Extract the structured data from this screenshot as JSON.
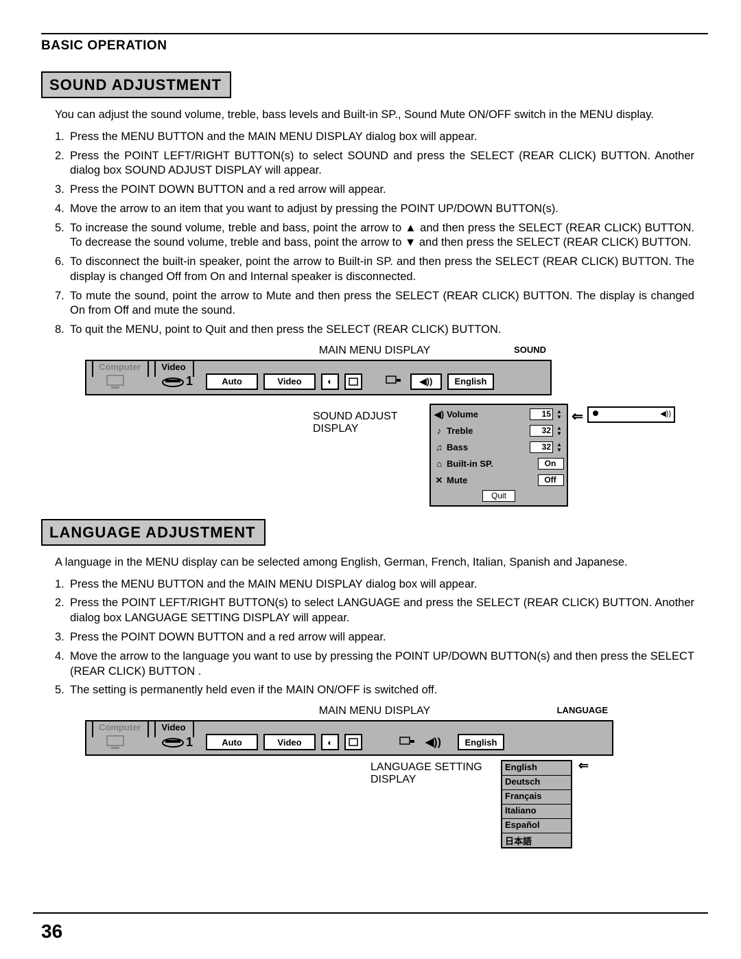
{
  "header": "BASIC OPERATION",
  "pageNumber": "36",
  "section1": {
    "title": "SOUND ADJUSTMENT",
    "intro": "You can adjust the sound volume, treble, bass levels and Built-in SP., Sound Mute ON/OFF switch in the MENU display.",
    "steps": [
      "Press the MENU BUTTON and the MAIN MENU DISPLAY dialog box will appear.",
      "Press the POINT LEFT/RIGHT BUTTON(s) to select SOUND and press the SELECT (REAR CLICK) BUTTON. Another dialog box SOUND ADJUST DISPLAY will appear.",
      "Press the POINT DOWN BUTTON and a red arrow will appear.",
      "Move the arrow to an item that you want to adjust by pressing the POINT UP/DOWN BUTTON(s).",
      "To increase the sound volume, treble and bass, point the arrow to ▲ and then press the SELECT (REAR CLICK) BUTTON. To decrease the sound volume, treble and bass, point the arrow to ▼ and then press the SELECT (REAR CLICK) BUTTON.",
      "To disconnect the built-in speaker, point the arrow to Built-in SP. and then press the SELECT (REAR CLICK) BUTTON. The display is changed Off from On and Internal speaker is disconnected.",
      "To mute the sound, point the arrow to Mute and then press the SELECT (REAR CLICK) BUTTON. The display is changed On from Off and mute the sound.",
      "To quit the MENU, point to Quit and then press the SELECT (REAR CLICK) BUTTON."
    ],
    "caption1": "MAIN MENU DISPLAY",
    "caption2": "SOUND ADJUST DISPLAY",
    "menu": {
      "tabComputer": "Computer",
      "tabVideo": "Video",
      "one": "1",
      "auto": "Auto",
      "video": "Video",
      "soundHdr": "SOUND",
      "english": "English",
      "rows": {
        "volume": "Volume",
        "treble": "Treble",
        "bass": "Bass",
        "builtin": "Built-in SP.",
        "mute": "Mute",
        "quit": "Quit"
      },
      "vals": {
        "volume": "15",
        "treble": "32",
        "bass": "32",
        "builtin": "On",
        "mute": "Off"
      }
    }
  },
  "section2": {
    "title": "LANGUAGE ADJUSTMENT",
    "intro": "A language in the MENU display can be selected among English, German, French, Italian, Spanish and Japanese.",
    "steps": [
      "Press the MENU BUTTON and the MAIN MENU DISPLAY dialog box will appear.",
      "Press the POINT LEFT/RIGHT BUTTON(s) to select LANGUAGE and press the SELECT (REAR CLICK) BUTTON. Another dialog box LANGUAGE SETTING DISPLAY will appear.",
      "Press the POINT DOWN BUTTON and a red arrow will appear.",
      "Move the arrow to the language you want to use by pressing the POINT UP/DOWN BUTTON(s) and then press the SELECT (REAR CLICK) BUTTON .",
      "The setting is permanently held even if the MAIN ON/OFF is switched off."
    ],
    "caption1": "MAIN MENU DISPLAY",
    "caption2": "LANGUAGE SETTING DISPLAY",
    "menu": {
      "tabComputer": "Computer",
      "tabVideo": "Video",
      "one": "1",
      "auto": "Auto",
      "video": "Video",
      "langHdr": "LANGUAGE",
      "english": "English",
      "langs": [
        "English",
        "Deutsch",
        "Français",
        "Italiano",
        "Español",
        "日本語"
      ]
    }
  }
}
